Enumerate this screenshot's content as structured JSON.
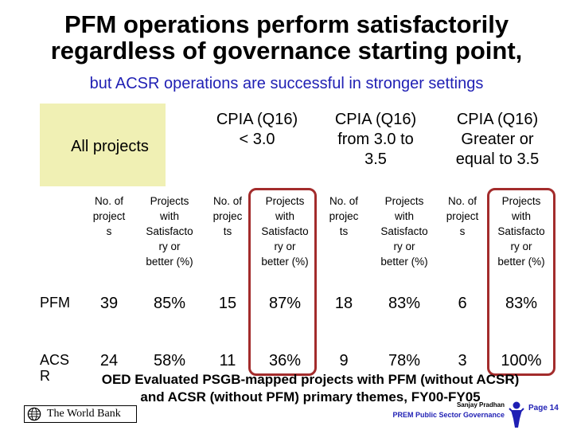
{
  "slide": {
    "title_line1": "PFM operations perform satisfactorily",
    "title_line2": "regardless of governance starting point,",
    "subtitle": "but ACSR operations are successful in stronger settings"
  },
  "table": {
    "header_all": "All projects",
    "groups": [
      {
        "line1": "CPIA (Q16)",
        "line2": "< 3.0",
        "line3": ""
      },
      {
        "line1": "CPIA (Q16)",
        "line2": "from 3.0 to",
        "line3": "3.5"
      },
      {
        "line1": "CPIA (Q16)",
        "line2": "Greater or",
        "line3": "equal to 3.5"
      }
    ],
    "subheaders": [
      [
        "No. of",
        "project",
        "s"
      ],
      [
        "Projects",
        "with",
        "Satisfacto",
        "ry or",
        "better (%)"
      ],
      [
        "No. of",
        "projec",
        "ts"
      ],
      [
        "Projects",
        "with",
        "Satisfacto",
        "ry or",
        "better (%)"
      ],
      [
        "No. of",
        "projec",
        "ts"
      ],
      [
        "Projects",
        "with",
        "Satisfacto",
        "ry or",
        "better (%)"
      ],
      [
        "No. of",
        "project",
        "s"
      ],
      [
        "Projects",
        "with",
        "Satisfacto",
        "ry or",
        "better (%)"
      ]
    ],
    "rows": [
      {
        "label_line1": "PFM",
        "label_line2": "",
        "values": [
          "39",
          "85%",
          "15",
          "87%",
          "18",
          "83%",
          "6",
          "83%"
        ]
      },
      {
        "label_line1": "ACS",
        "label_line2": "R",
        "values": [
          "24",
          "58%",
          "11",
          "36%",
          "9",
          "78%",
          "3",
          "100%"
        ]
      }
    ]
  },
  "note": {
    "line1": "OED Evaluated PSGB-mapped projects with PFM (without ACSR)",
    "line2": "and ACSR (without PFM) primary themes, FY00-FY05"
  },
  "footer": {
    "logo_text": "The World Bank",
    "author": "Sanjay Pradhan",
    "unit": "PREM Public Sector Governance",
    "page": "Page 14"
  },
  "colors": {
    "accent_blue": "#1f1fb4",
    "highlight_frame": "#a32c2c",
    "header_fill": "#f0f0b4"
  },
  "icons": [
    "globe-icon",
    "person-icon"
  ]
}
